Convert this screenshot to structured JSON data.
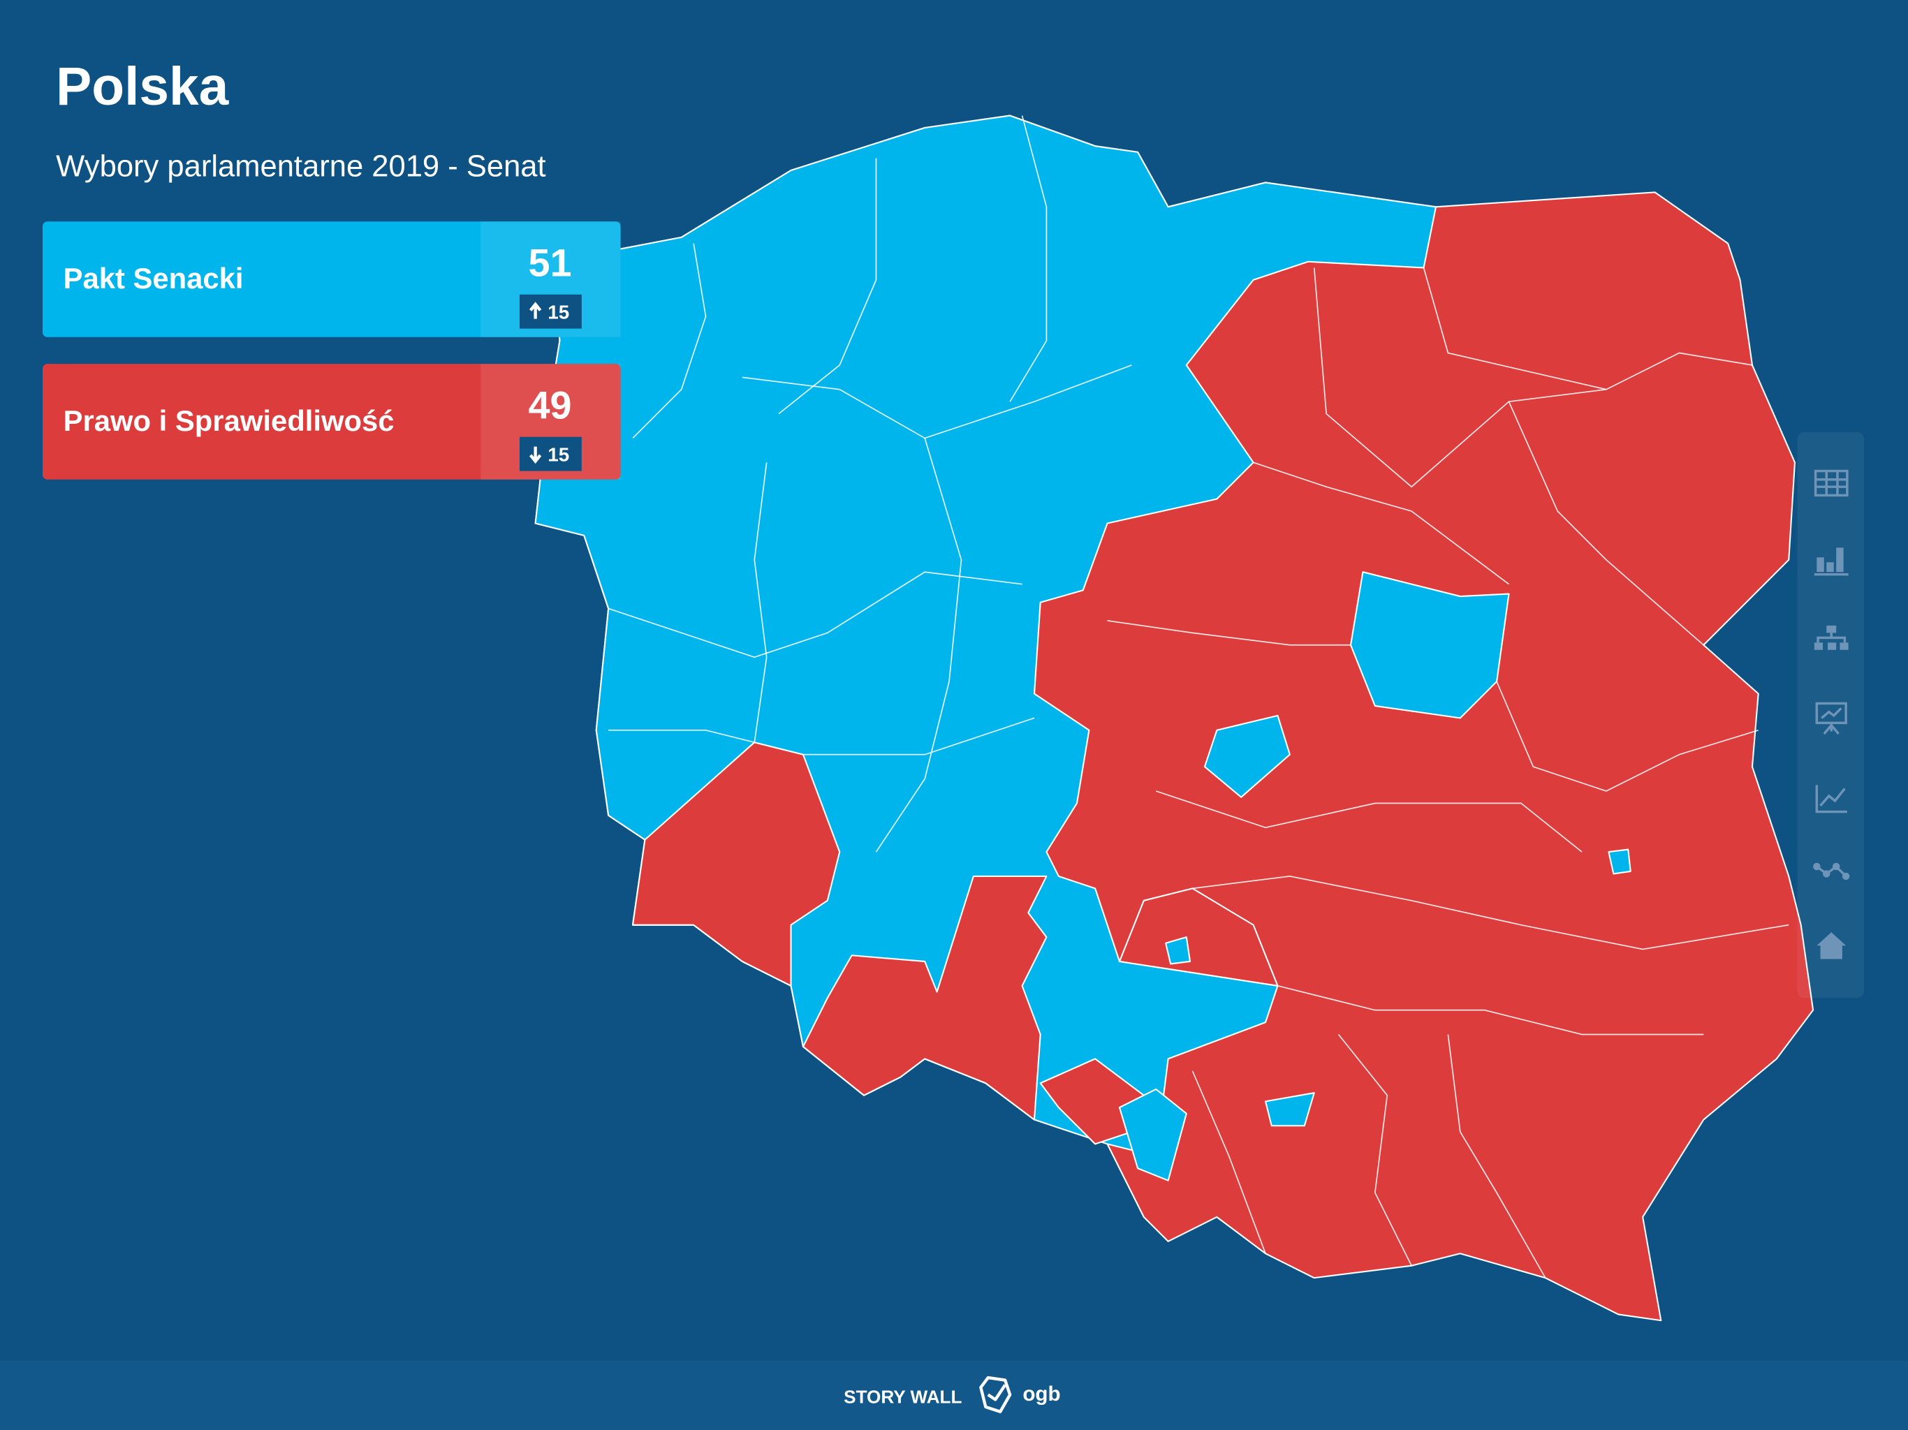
{
  "header": {
    "title": "Polska",
    "subtitle": "Wybory parlamentarne 2019 - Senat"
  },
  "parties": [
    {
      "name": "Pakt Senacki",
      "seats": 51,
      "change": 15,
      "color": "#00b5ec"
    },
    {
      "name": "Prawo i Sprawiedliwość",
      "seats": 49,
      "change": 15,
      "color": "#dc3c3c"
    }
  ],
  "footer": {
    "brand": "STORY WALL",
    "logo": "ogb"
  }
}
